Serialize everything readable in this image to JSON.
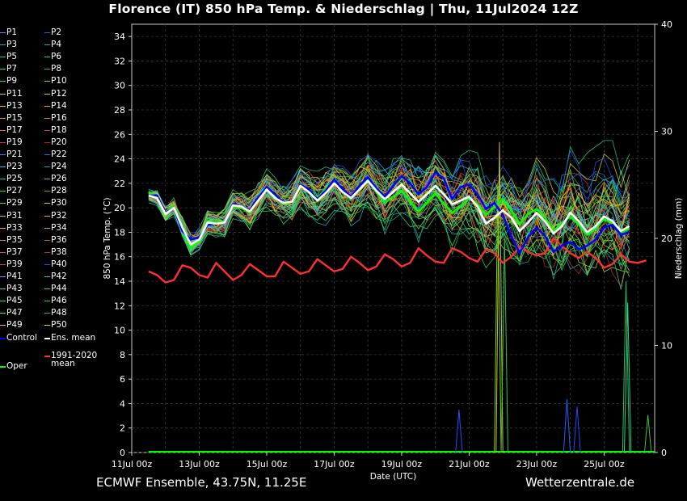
{
  "header": {
    "title": "Florence  (IT)  850 hPa Temp. & Niederschlag | Thu, 11Jul2024 12Z"
  },
  "footer": {
    "left": "ECMWF Ensemble, 43.75N, 11.25E",
    "right": "Wetterzentrale.de"
  },
  "legend": {
    "members": [
      "P1",
      "P2",
      "P3",
      "P4",
      "P5",
      "P6",
      "P7",
      "P8",
      "P9",
      "P10",
      "P11",
      "P12",
      "P13",
      "P14",
      "P15",
      "P16",
      "P17",
      "P18",
      "P19",
      "P20",
      "P21",
      "P22",
      "P23",
      "P24",
      "P25",
      "P26",
      "P27",
      "P28",
      "P29",
      "P30",
      "P31",
      "P32",
      "P33",
      "P34",
      "P35",
      "P36",
      "P37",
      "P38",
      "P39",
      "P40",
      "P41",
      "P42",
      "P43",
      "P44",
      "P45",
      "P46",
      "P47",
      "P48",
      "P49",
      "P50"
    ],
    "member_colors": [
      "#4f8fff",
      "#1f5fff",
      "#20a0d0",
      "#1fb0c0",
      "#20c0b0",
      "#20d080",
      "#30e060",
      "#20c050",
      "#50e030",
      "#40ff20",
      "#b0e020",
      "#e0d020",
      "#f0c020",
      "#f0a020",
      "#e09040",
      "#d08030",
      "#e07030",
      "#c05030",
      "#d04030",
      "#c02020",
      "#4080ff",
      "#3070e0",
      "#30b0e0",
      "#20a0c0",
      "#20c0a0",
      "#20d090",
      "#30e070",
      "#20c060",
      "#60e040",
      "#c0e020",
      "#d0c020",
      "#e0b030",
      "#f0b030",
      "#e0a030",
      "#d08040",
      "#c06030",
      "#e05040",
      "#c03030",
      "#d04050",
      "#2050ff",
      "#40a0ff",
      "#30c0e0",
      "#30d0b0",
      "#30e080",
      "#40e060",
      "#30d050",
      "#60f040",
      "#40c040",
      "#e0c030",
      "#f0d020"
    ],
    "control": "Control",
    "ens_mean": "Ens. mean",
    "clim_1": "1991-2020",
    "clim_2": "mean",
    "oper": "Oper",
    "control_color": "#0000ff",
    "mean_color": "#ffffff",
    "clim_color": "#ff3030",
    "oper_color": "#00ff00"
  },
  "chart_data": {
    "type": "line",
    "ylabel": "850 hPa Temp. (°C)",
    "y2label": "Niederschlag (mm)",
    "xlabel": "Date (UTC)",
    "ylim": [
      0,
      35
    ],
    "y2lim": [
      0,
      40
    ],
    "y_ticks": [
      0,
      2,
      4,
      6,
      8,
      10,
      12,
      14,
      16,
      18,
      20,
      22,
      24,
      26,
      28,
      30,
      32,
      34
    ],
    "y2_ticks": [
      0,
      10,
      20,
      30,
      40
    ],
    "x_tick_labels": [
      "11Jul 00z",
      "13Jul 00z",
      "15Jul 00z",
      "17Jul 00z",
      "19Jul 00z",
      "21Jul 00z",
      "23Jul 00z",
      "25Jul 00z"
    ],
    "xlim_days": [
      0,
      15.5
    ],
    "grid": true,
    "legend_position": "left-outside",
    "ens_mean_temp": [
      [
        0.5,
        21.0
      ],
      [
        0.75,
        20.8
      ],
      [
        1.0,
        19.5
      ],
      [
        1.25,
        20.0
      ],
      [
        1.5,
        18.4
      ],
      [
        1.75,
        17.0
      ],
      [
        2.0,
        17.4
      ],
      [
        2.25,
        18.8
      ],
      [
        2.5,
        18.7
      ],
      [
        2.75,
        18.8
      ],
      [
        3.0,
        20.2
      ],
      [
        3.25,
        20.1
      ],
      [
        3.5,
        19.7
      ],
      [
        3.75,
        20.6
      ],
      [
        4.0,
        21.5
      ],
      [
        4.25,
        20.8
      ],
      [
        4.5,
        20.4
      ],
      [
        4.75,
        20.5
      ],
      [
        5.0,
        21.8
      ],
      [
        5.25,
        21.3
      ],
      [
        5.5,
        20.6
      ],
      [
        5.75,
        21.2
      ],
      [
        6.0,
        22.0
      ],
      [
        6.25,
        21.3
      ],
      [
        6.5,
        20.8
      ],
      [
        6.75,
        21.5
      ],
      [
        7.0,
        22.2
      ],
      [
        7.25,
        21.4
      ],
      [
        7.5,
        20.7
      ],
      [
        7.75,
        21.3
      ],
      [
        8.0,
        21.9
      ],
      [
        8.25,
        21.2
      ],
      [
        8.5,
        20.5
      ],
      [
        8.75,
        21.1
      ],
      [
        9.0,
        21.8
      ],
      [
        9.25,
        21.1
      ],
      [
        9.5,
        20.3
      ],
      [
        9.75,
        20.6
      ],
      [
        10.0,
        20.9
      ],
      [
        10.25,
        20.1
      ],
      [
        10.5,
        18.7
      ],
      [
        10.75,
        19.2
      ],
      [
        11.0,
        19.8
      ],
      [
        11.25,
        19.2
      ],
      [
        11.5,
        18.1
      ],
      [
        11.75,
        18.8
      ],
      [
        12.0,
        19.6
      ],
      [
        12.25,
        18.9
      ],
      [
        12.5,
        17.9
      ],
      [
        12.75,
        18.5
      ],
      [
        13.0,
        19.6
      ],
      [
        13.25,
        18.9
      ],
      [
        13.5,
        18.0
      ],
      [
        13.75,
        18.5
      ],
      [
        14.0,
        19.3
      ],
      [
        14.25,
        18.9
      ],
      [
        14.5,
        18.1
      ],
      [
        14.75,
        18.5
      ]
    ],
    "control_temp": [
      [
        0.5,
        21.0
      ],
      [
        0.75,
        21.0
      ],
      [
        1.0,
        19.6
      ],
      [
        1.25,
        20.0
      ],
      [
        1.5,
        18.1
      ],
      [
        1.75,
        17.4
      ],
      [
        2.0,
        17.6
      ],
      [
        2.25,
        18.6
      ],
      [
        2.5,
        18.7
      ],
      [
        2.75,
        18.8
      ],
      [
        3.0,
        20.3
      ],
      [
        3.25,
        20.1
      ],
      [
        3.5,
        19.8
      ],
      [
        3.75,
        20.8
      ],
      [
        4.0,
        21.7
      ],
      [
        4.25,
        21.1
      ],
      [
        4.5,
        20.4
      ],
      [
        4.75,
        20.5
      ],
      [
        5.0,
        21.9
      ],
      [
        5.25,
        21.5
      ],
      [
        5.5,
        20.7
      ],
      [
        5.75,
        21.4
      ],
      [
        6.0,
        22.3
      ],
      [
        6.25,
        21.5
      ],
      [
        6.5,
        20.9
      ],
      [
        6.75,
        21.8
      ],
      [
        7.0,
        22.5
      ],
      [
        7.25,
        21.6
      ],
      [
        7.5,
        20.9
      ],
      [
        7.75,
        21.8
      ],
      [
        8.0,
        22.6
      ],
      [
        8.25,
        22.0
      ],
      [
        8.5,
        21.1
      ],
      [
        8.75,
        21.7
      ],
      [
        9.0,
        22.9
      ],
      [
        9.25,
        22.4
      ],
      [
        9.5,
        20.7
      ],
      [
        9.75,
        21.7
      ],
      [
        10.0,
        21.9
      ],
      [
        10.25,
        21.1
      ],
      [
        10.5,
        19.9
      ],
      [
        10.75,
        20.4
      ],
      [
        11.0,
        19.4
      ],
      [
        11.25,
        17.7
      ],
      [
        11.5,
        16.3
      ],
      [
        11.75,
        17.6
      ],
      [
        12.0,
        18.4
      ],
      [
        12.25,
        17.7
      ],
      [
        12.5,
        16.4
      ],
      [
        12.75,
        16.9
      ],
      [
        13.0,
        17.2
      ],
      [
        13.25,
        16.6
      ],
      [
        13.5,
        16.9
      ],
      [
        13.75,
        17.4
      ],
      [
        14.0,
        18.4
      ],
      [
        14.25,
        18.6
      ],
      [
        14.5,
        17.8
      ],
      [
        14.75,
        18.0
      ]
    ],
    "oper_temp": [
      [
        0.5,
        21.3
      ],
      [
        0.75,
        20.8
      ],
      [
        1.0,
        19.6
      ],
      [
        1.25,
        20.1
      ],
      [
        1.5,
        18.3
      ],
      [
        1.75,
        16.7
      ],
      [
        2.0,
        17.3
      ],
      [
        2.25,
        18.9
      ],
      [
        2.5,
        18.8
      ],
      [
        2.75,
        18.9
      ],
      [
        3.0,
        20.1
      ],
      [
        3.25,
        20.0
      ],
      [
        3.5,
        19.6
      ],
      [
        3.75,
        20.7
      ],
      [
        4.0,
        21.6
      ],
      [
        4.25,
        20.9
      ],
      [
        4.5,
        20.3
      ],
      [
        4.75,
        20.5
      ],
      [
        5.0,
        21.9
      ],
      [
        5.25,
        21.5
      ],
      [
        5.5,
        20.8
      ],
      [
        5.75,
        21.5
      ],
      [
        6.0,
        22.3
      ],
      [
        6.25,
        21.5
      ],
      [
        6.5,
        20.8
      ],
      [
        6.75,
        21.6
      ],
      [
        7.0,
        22.3
      ],
      [
        7.25,
        21.3
      ],
      [
        7.5,
        20.4
      ],
      [
        7.75,
        20.9
      ],
      [
        8.0,
        21.4
      ],
      [
        8.25,
        20.5
      ],
      [
        8.5,
        19.7
      ],
      [
        8.75,
        20.4
      ],
      [
        9.0,
        21.2
      ],
      [
        9.25,
        20.3
      ],
      [
        9.5,
        19.6
      ],
      [
        9.75,
        20.1
      ],
      [
        10.0,
        20.8
      ],
      [
        10.25,
        20.3
      ],
      [
        10.5,
        19.4
      ],
      [
        10.75,
        20.1
      ],
      [
        11.0,
        20.7
      ],
      [
        11.25,
        19.8
      ],
      [
        11.5,
        18.7
      ],
      [
        11.75,
        19.5
      ],
      [
        12.0,
        19.9
      ],
      [
        12.25,
        19.2
      ],
      [
        12.5,
        18.1
      ],
      [
        12.75,
        18.7
      ],
      [
        13.0,
        19.3
      ],
      [
        13.25,
        18.6
      ],
      [
        13.5,
        17.8
      ],
      [
        13.75,
        18.3
      ],
      [
        14.0,
        19.1
      ],
      [
        14.25,
        18.7
      ],
      [
        14.5,
        18.0
      ],
      [
        14.75,
        18.3
      ]
    ],
    "clim_mean_temp": [
      [
        0.5,
        14.8
      ],
      [
        0.75,
        14.5
      ],
      [
        1.0,
        13.9
      ],
      [
        1.25,
        14.1
      ],
      [
        1.5,
        15.3
      ],
      [
        1.75,
        15.1
      ],
      [
        2.0,
        14.5
      ],
      [
        2.25,
        14.3
      ],
      [
        2.5,
        15.5
      ],
      [
        2.75,
        14.8
      ],
      [
        3.0,
        14.1
      ],
      [
        3.25,
        14.5
      ],
      [
        3.5,
        15.4
      ],
      [
        3.75,
        14.9
      ],
      [
        4.0,
        14.4
      ],
      [
        4.25,
        14.4
      ],
      [
        4.5,
        15.6
      ],
      [
        4.75,
        15.1
      ],
      [
        5.0,
        14.6
      ],
      [
        5.25,
        14.8
      ],
      [
        5.5,
        15.8
      ],
      [
        5.75,
        15.3
      ],
      [
        6.0,
        14.8
      ],
      [
        6.25,
        15.0
      ],
      [
        6.5,
        16.0
      ],
      [
        6.75,
        15.5
      ],
      [
        7.0,
        14.9
      ],
      [
        7.25,
        15.2
      ],
      [
        7.5,
        16.2
      ],
      [
        7.75,
        15.8
      ],
      [
        8.0,
        15.2
      ],
      [
        8.25,
        15.5
      ],
      [
        8.5,
        16.7
      ],
      [
        8.75,
        16.1
      ],
      [
        9.0,
        15.6
      ],
      [
        9.25,
        15.5
      ],
      [
        9.5,
        16.7
      ],
      [
        9.75,
        16.4
      ],
      [
        10.0,
        15.9
      ],
      [
        10.25,
        15.6
      ],
      [
        10.5,
        16.6
      ],
      [
        10.75,
        16.3
      ],
      [
        11.0,
        15.5
      ],
      [
        11.25,
        16.0
      ],
      [
        11.5,
        16.8
      ],
      [
        11.75,
        16.4
      ],
      [
        12.0,
        16.1
      ],
      [
        12.25,
        16.3
      ],
      [
        12.5,
        17.5
      ],
      [
        12.75,
        16.9
      ],
      [
        13.0,
        16.3
      ],
      [
        13.25,
        15.9
      ],
      [
        13.5,
        16.4
      ],
      [
        13.75,
        15.9
      ],
      [
        14.0,
        15.1
      ],
      [
        14.25,
        15.4
      ],
      [
        14.5,
        16.2
      ],
      [
        14.75,
        15.6
      ],
      [
        15.0,
        15.5
      ],
      [
        15.25,
        15.7
      ]
    ],
    "precip_spikes_mm": [
      {
        "day": 10.9,
        "value": 29
      },
      {
        "day": 10.85,
        "value": 25
      },
      {
        "day": 11.05,
        "value": 20
      },
      {
        "day": 14.65,
        "value": 16
      },
      {
        "day": 14.7,
        "value": 14
      },
      {
        "day": 12.9,
        "value": 5.0
      },
      {
        "day": 13.2,
        "value": 4.3
      },
      {
        "day": 9.7,
        "value": 4.0
      },
      {
        "day": 15.3,
        "value": 3.5
      }
    ]
  }
}
